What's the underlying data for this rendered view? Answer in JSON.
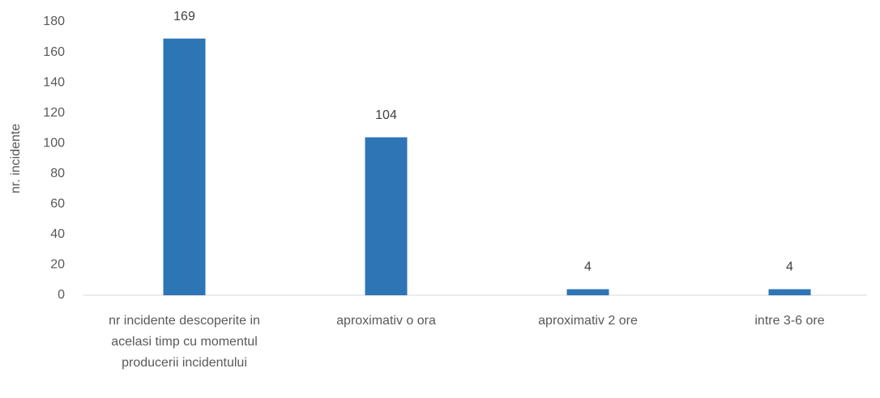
{
  "chart_data": {
    "type": "bar",
    "y_label": "nr. incidente",
    "categories": [
      "nr incidente descoperite in acelasi timp cu momentul producerii incidentului",
      "aproximativ o ora",
      "aproximativ 2 ore",
      "intre 3-6 ore"
    ],
    "values": [
      169,
      104,
      4,
      4
    ],
    "color": "#2e75b6",
    "ylim": [
      0,
      180
    ],
    "yticks": [
      0,
      20,
      40,
      60,
      80,
      100,
      120,
      140,
      160,
      180
    ],
    "grid": false
  }
}
